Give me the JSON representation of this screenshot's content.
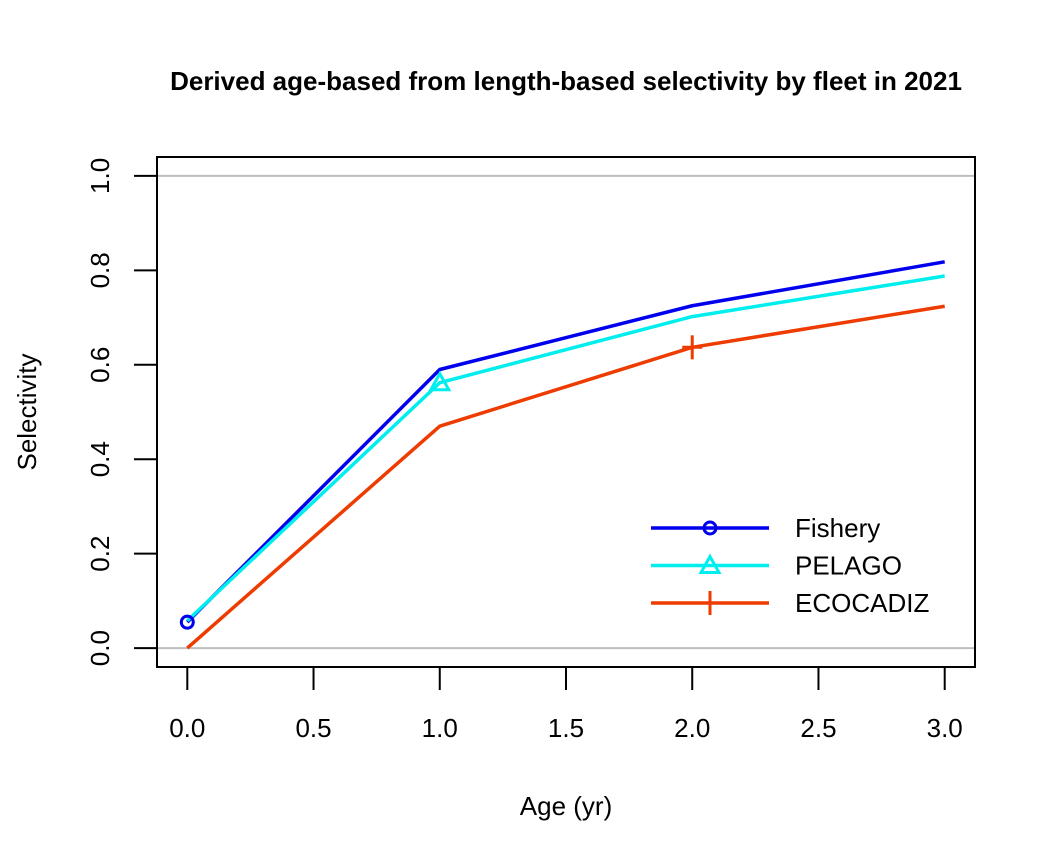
{
  "chart_data": {
    "type": "line",
    "title": "Derived age-based from length-based selectivity by fleet in 2021",
    "xlabel": "Age (yr)",
    "ylabel": "Selectivity",
    "xlim": [
      -0.12,
      3.12
    ],
    "ylim": [
      -0.04,
      1.04
    ],
    "x_ticks": [
      0.0,
      0.5,
      1.0,
      1.5,
      2.0,
      2.5,
      3.0
    ],
    "x_tick_labels": [
      "0.0",
      "0.5",
      "1.0",
      "1.5",
      "2.0",
      "2.5",
      "3.0"
    ],
    "y_ticks": [
      0.0,
      0.2,
      0.4,
      0.6,
      0.8,
      1.0
    ],
    "y_tick_labels": [
      "0.0",
      "0.2",
      "0.4",
      "0.6",
      "0.8",
      "1.0"
    ],
    "reference_lines": [
      0.0,
      1.0
    ],
    "reference_line_color": "#bebebe",
    "legend_position": "bottom-right",
    "x": [
      0,
      1,
      2,
      3
    ],
    "series": [
      {
        "name": "Fishery",
        "values": [
          0.055,
          0.59,
          0.725,
          0.818
        ],
        "color": "#0000ee",
        "marker": "circle",
        "marker_index": 0
      },
      {
        "name": "PELAGO",
        "values": [
          0.058,
          0.562,
          0.702,
          0.788
        ],
        "color": "#00eeee",
        "marker": "triangle",
        "marker_index": 1
      },
      {
        "name": "ECOCADIZ",
        "values": [
          0.0,
          0.47,
          0.637,
          0.724
        ],
        "color": "#ee3b00",
        "marker": "plus",
        "marker_index": 2
      }
    ]
  }
}
